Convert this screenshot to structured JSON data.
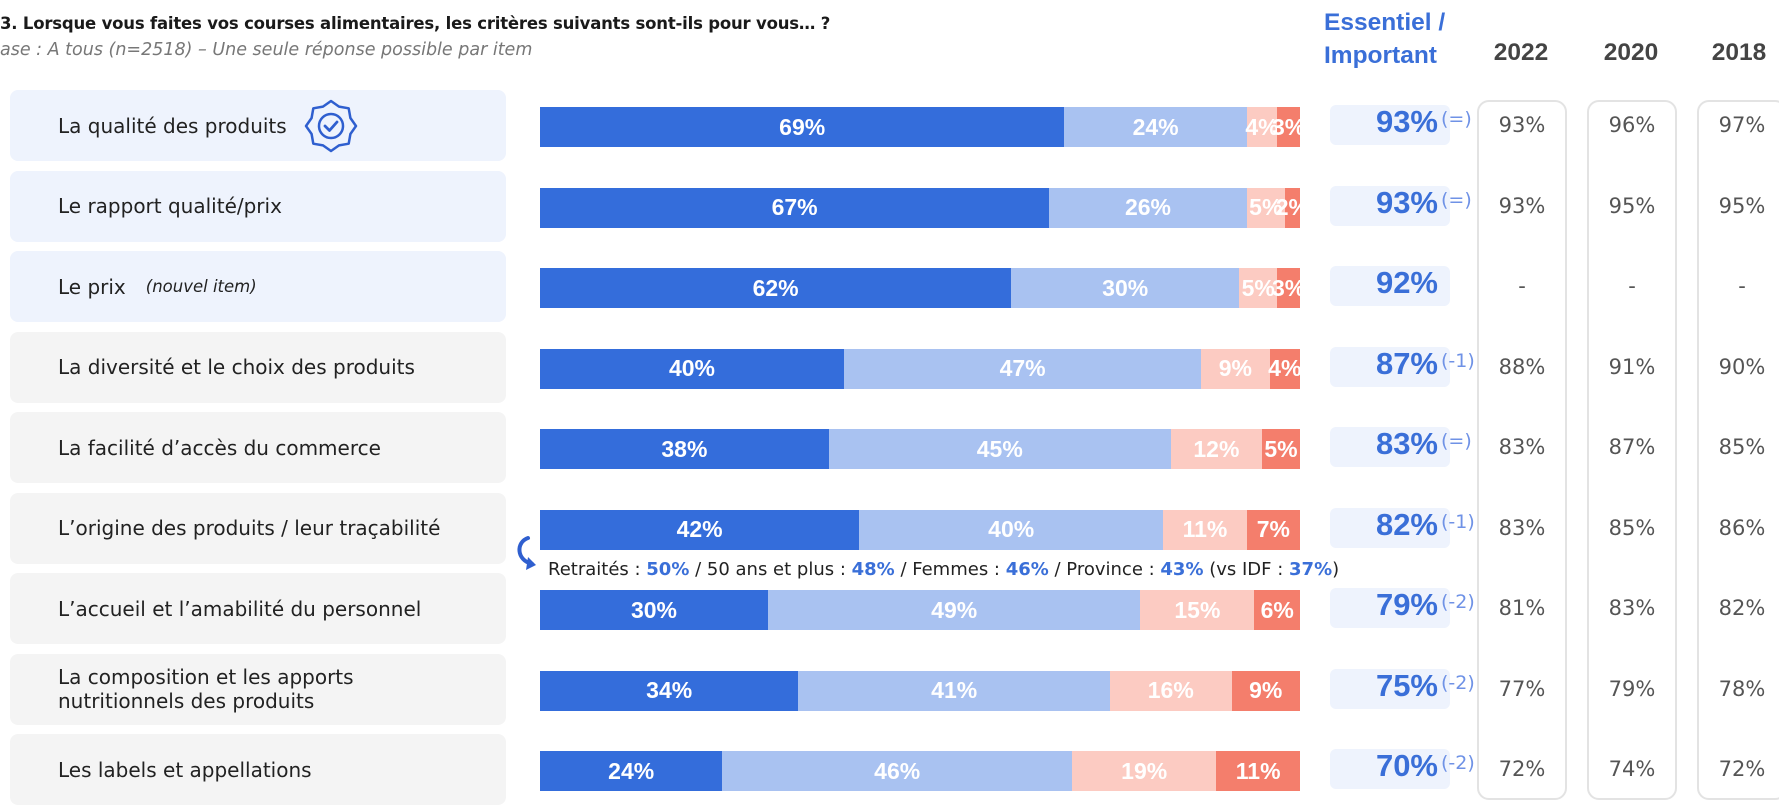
{
  "question": "3. Lorsque vous faites vos courses alimentaires, les critères suivants sont-ils pour vous… ?",
  "base": "ase : A tous (n=2518) – Une seule réponse possible par item",
  "essential_header": "Essentiel /\nImportant",
  "years": [
    "2022",
    "2020",
    "2018"
  ],
  "colors": {
    "essentiel": "#346ddb",
    "important": "#a9c2f1",
    "peu_important": "#fccbc2",
    "pas_important": "#f47e6c",
    "accent_text": "#3a6fd8"
  },
  "callout": {
    "parts": [
      {
        "t": "Retraités : ",
        "hl": false
      },
      {
        "t": "50%",
        "hl": true
      },
      {
        "t": " / 50 ans et plus : ",
        "hl": false
      },
      {
        "t": "48%",
        "hl": true
      },
      {
        "t": " / Femmes : ",
        "hl": false
      },
      {
        "t": "46%",
        "hl": true
      },
      {
        "t": " / Province : ",
        "hl": false
      },
      {
        "t": "43%",
        "hl": true
      },
      {
        "t": " (vs IDF : ",
        "hl": false
      },
      {
        "t": "37%",
        "hl": true
      },
      {
        "t": ")",
        "hl": false
      }
    ]
  },
  "chart_data": {
    "type": "bar",
    "orientation": "horizontal",
    "stacked": true,
    "series_count": 4,
    "rows": [
      {
        "label": "La qualité des produits",
        "note": "",
        "icon": "quality-badge-icon",
        "segments": [
          69,
          24,
          4,
          3
        ],
        "total": "93%",
        "delta": "(=)",
        "history": [
          "93%",
          "96%",
          "97%"
        ],
        "highlight": true
      },
      {
        "label": "Le rapport qualité/prix",
        "note": "",
        "icon": "",
        "segments": [
          67,
          26,
          5,
          2
        ],
        "total": "93%",
        "delta": "(=)",
        "history": [
          "93%",
          "95%",
          "95%"
        ],
        "highlight": true
      },
      {
        "label": "Le prix",
        "note": "(nouvel item)",
        "icon": "",
        "segments": [
          62,
          30,
          5,
          3
        ],
        "total": "92%",
        "delta": "",
        "history": [
          "-",
          "-",
          "-"
        ],
        "highlight": true
      },
      {
        "label": "La diversité et le choix des produits",
        "note": "",
        "icon": "",
        "segments": [
          40,
          47,
          9,
          4
        ],
        "total": "87%",
        "delta": "(-1)",
        "history": [
          "88%",
          "91%",
          "90%"
        ],
        "highlight": false
      },
      {
        "label": "La facilité d’accès du commerce",
        "note": "",
        "icon": "",
        "segments": [
          38,
          45,
          12,
          5
        ],
        "total": "83%",
        "delta": "(=)",
        "history": [
          "83%",
          "87%",
          "85%"
        ],
        "highlight": false
      },
      {
        "label": "L’origine des produits / leur traçabilité",
        "note": "",
        "icon": "",
        "segments": [
          42,
          40,
          11,
          7
        ],
        "total": "82%",
        "delta": "(-1)",
        "history": [
          "83%",
          "85%",
          "86%"
        ],
        "highlight": false
      },
      {
        "label": "L’accueil et l’amabilité du personnel",
        "note": "",
        "icon": "",
        "segments": [
          30,
          49,
          15,
          6
        ],
        "total": "79%",
        "delta": "(-2)",
        "history": [
          "81%",
          "83%",
          "82%"
        ],
        "highlight": false
      },
      {
        "label": "La composition et les apports\nnutritionnels des produits",
        "note": "",
        "icon": "",
        "segments": [
          34,
          41,
          16,
          9
        ],
        "total": "75%",
        "delta": "(-2)",
        "history": [
          "77%",
          "79%",
          "78%"
        ],
        "highlight": false
      },
      {
        "label": "Les labels et appellations",
        "note": "",
        "icon": "",
        "segments": [
          24,
          46,
          19,
          11
        ],
        "total": "70%",
        "delta": "(-2)",
        "history": [
          "72%",
          "74%",
          "72%"
        ],
        "highlight": false
      }
    ]
  }
}
